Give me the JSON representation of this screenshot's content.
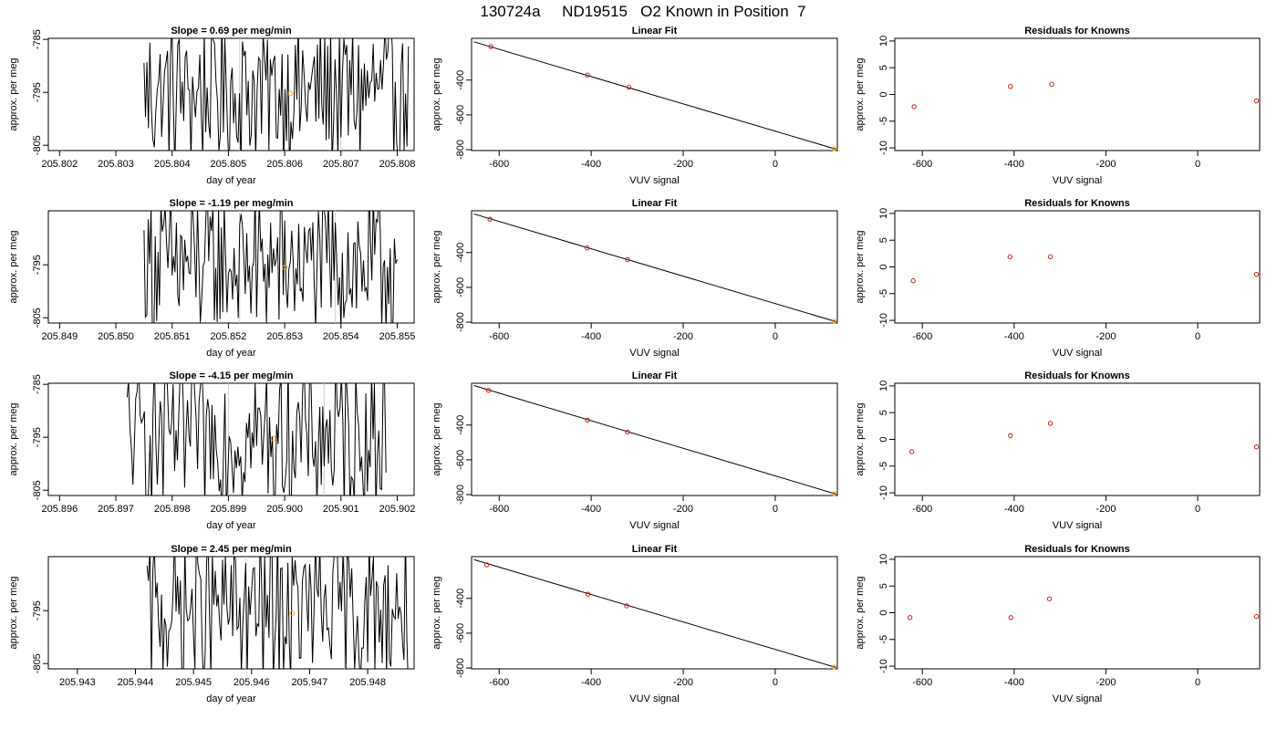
{
  "page": {
    "title": "130724a     ND19515   O2 Known in Position  7"
  },
  "rows": [
    {
      "time_plot": {
        "title": "Slope =  0.69  per meg/min",
        "xlabel": "day of year",
        "ylabel": "approx. per meg",
        "xlim": [
          205.8018,
          205.8083
        ],
        "ylim": [
          -806,
          -784.8
        ],
        "xticks": [
          205.802,
          205.803,
          205.804,
          205.805,
          205.806,
          205.807,
          205.808
        ],
        "xtick_labels": [
          "205.802",
          "205.803",
          "205.804",
          "205.805",
          "205.806",
          "205.807",
          "205.808"
        ],
        "yticks": [
          -785,
          -795,
          -805
        ],
        "ytick_labels": [
          "-785",
          "-795",
          "-805"
        ],
        "trace_start": 205.8035,
        "trace_end": 205.8082,
        "vlines": [
          205.8052,
          205.807
        ],
        "marker": {
          "x": 205.8061,
          "y": -795.2
        }
      },
      "fit_plot": {
        "title": "Linear Fit",
        "xlabel": "VUV signal",
        "ylabel": "approx. per meg",
        "xlim": [
          -660,
          135
        ],
        "ylim": [
          -805,
          -160
        ],
        "xticks": [
          -600,
          -400,
          -200,
          0
        ],
        "xtick_labels": [
          "-600",
          "-400",
          "-200",
          "0"
        ],
        "yticks": [
          -400,
          -600,
          -800
        ],
        "ytick_labels": [
          "-400",
          "-600",
          "-800"
        ],
        "line": {
          "x0": -655,
          "y0": -180,
          "x1": 132,
          "y1": -797
        },
        "points": [
          {
            "x": -618,
            "y": -208
          },
          {
            "x": -408,
            "y": -371
          },
          {
            "x": -318,
            "y": -441
          }
        ],
        "orange_point": {
          "x": 128,
          "y": -794
        }
      },
      "resid_plot": {
        "title": "Residuals for Knowns",
        "xlabel": "VUV signal",
        "ylabel": "approx. per meg",
        "xlim": [
          -660,
          135
        ],
        "ylim": [
          -10.5,
          10.5
        ],
        "xticks": [
          -600,
          -400,
          -200,
          0
        ],
        "xtick_labels": [
          "-600",
          "-400",
          "-200",
          "0"
        ],
        "yticks": [
          10,
          5,
          0,
          -5,
          -10
        ],
        "ytick_labels": [
          "10",
          "5",
          "0",
          "-5",
          "-10"
        ],
        "points": [
          {
            "x": -618,
            "y": -2.3
          },
          {
            "x": -408,
            "y": 1.5
          },
          {
            "x": -318,
            "y": 1.9
          },
          {
            "x": 128,
            "y": -1.2
          }
        ]
      }
    },
    {
      "time_plot": {
        "title": "Slope =  -1.19  per meg/min",
        "xlabel": "day of year",
        "ylabel": "approx. per meg",
        "xlim": [
          205.8488,
          205.8553
        ],
        "ylim": [
          -806,
          -784.8
        ],
        "xticks": [
          205.849,
          205.85,
          205.851,
          205.852,
          205.853,
          205.854,
          205.855
        ],
        "xtick_labels": [
          "205.849",
          "205.850",
          "205.851",
          "205.852",
          "205.853",
          "205.854",
          "205.855"
        ],
        "yticks": [
          -795,
          -805
        ],
        "ytick_labels": [
          "-795",
          "-805"
        ],
        "trace_start": 205.8505,
        "trace_end": 205.855,
        "vlines": [
          205.8522,
          205.8539
        ],
        "marker": {
          "x": 205.853,
          "y": -795.5
        }
      },
      "fit_plot": {
        "title": "Linear Fit",
        "xlabel": "VUV signal",
        "ylabel": "approx. per meg",
        "xlim": [
          -660,
          135
        ],
        "ylim": [
          -805,
          -160
        ],
        "xticks": [
          -600,
          -400,
          -200,
          0
        ],
        "xtick_labels": [
          "-600",
          "-400",
          "-200",
          "0"
        ],
        "yticks": [
          -400,
          -600,
          -800
        ],
        "ytick_labels": [
          "-400",
          "-600",
          "-800"
        ],
        "line": {
          "x0": -655,
          "y0": -178,
          "x1": 132,
          "y1": -797
        },
        "points": [
          {
            "x": -620,
            "y": -208
          },
          {
            "x": -409,
            "y": -373
          },
          {
            "x": -321,
            "y": -441
          }
        ],
        "orange_point": {
          "x": 128,
          "y": -794
        }
      },
      "resid_plot": {
        "title": "Residuals for Knowns",
        "xlabel": "VUV signal",
        "ylabel": "approx. per meg",
        "xlim": [
          -660,
          135
        ],
        "ylim": [
          -10.5,
          10.5
        ],
        "xticks": [
          -600,
          -400,
          -200,
          0
        ],
        "xtick_labels": [
          "-600",
          "-400",
          "-200",
          "0"
        ],
        "yticks": [
          10,
          5,
          0,
          -5,
          -10
        ],
        "ytick_labels": [
          "10",
          "5",
          "0",
          "-5",
          "-10"
        ],
        "points": [
          {
            "x": -620,
            "y": -2.6
          },
          {
            "x": -409,
            "y": 1.9
          },
          {
            "x": -321,
            "y": 1.9
          },
          {
            "x": 128,
            "y": -1.4
          }
        ]
      }
    },
    {
      "time_plot": {
        "title": "Slope =  -4.15  per meg/min",
        "xlabel": "day of year",
        "ylabel": "approx. per meg",
        "xlim": [
          205.8958,
          205.9023
        ],
        "ylim": [
          -806,
          -784.8
        ],
        "xticks": [
          205.896,
          205.897,
          205.898,
          205.899,
          205.9,
          205.901,
          205.902
        ],
        "xtick_labels": [
          "205.896",
          "205.897",
          "205.898",
          "205.899",
          "205.900",
          "205.901",
          "205.902"
        ],
        "yticks": [
          -785,
          -795,
          -805
        ],
        "ytick_labels": [
          "-785",
          "-795",
          "-805"
        ],
        "trace_start": 205.8972,
        "trace_end": 205.9018,
        "vlines": [
          205.899,
          205.9007
        ],
        "marker": {
          "x": 205.8998,
          "y": -795.2
        }
      },
      "fit_plot": {
        "title": "Linear Fit",
        "xlabel": "VUV signal",
        "ylabel": "approx. per meg",
        "xlim": [
          -660,
          135
        ],
        "ylim": [
          -805,
          -160
        ],
        "xticks": [
          -600,
          -400,
          -200,
          0
        ],
        "xtick_labels": [
          "-600",
          "-400",
          "-200",
          "0"
        ],
        "yticks": [
          -400,
          -600,
          -800
        ],
        "ytick_labels": [
          "-400",
          "-600",
          "-800"
        ],
        "line": {
          "x0": -655,
          "y0": -173,
          "x1": 132,
          "y1": -797
        },
        "points": [
          {
            "x": -623,
            "y": -201
          },
          {
            "x": -408,
            "y": -372
          },
          {
            "x": -321,
            "y": -440
          }
        ],
        "orange_point": {
          "x": 128,
          "y": -794
        }
      },
      "resid_plot": {
        "title": "Residuals for Knowns",
        "xlabel": "VUV signal",
        "ylabel": "approx. per meg",
        "xlim": [
          -660,
          135
        ],
        "ylim": [
          -10.5,
          10.5
        ],
        "xticks": [
          -600,
          -400,
          -200,
          0
        ],
        "xtick_labels": [
          "-600",
          "-400",
          "-200",
          "0"
        ],
        "yticks": [
          10,
          5,
          0,
          -5,
          -10
        ],
        "ytick_labels": [
          "10",
          "5",
          "0",
          "-5",
          "-10"
        ],
        "points": [
          {
            "x": -623,
            "y": -2.3
          },
          {
            "x": -408,
            "y": 0.7
          },
          {
            "x": -321,
            "y": 3.0
          },
          {
            "x": 128,
            "y": -1.4
          }
        ]
      }
    },
    {
      "time_plot": {
        "title": "Slope =  2.45  per meg/min",
        "xlabel": "day of year",
        "ylabel": "approx. per meg",
        "xlim": [
          205.9425,
          205.9488
        ],
        "ylim": [
          -806,
          -784.8
        ],
        "xticks": [
          205.943,
          205.944,
          205.945,
          205.946,
          205.947,
          205.948
        ],
        "xtick_labels": [
          "205.943",
          "205.944",
          "205.945",
          "205.946",
          "205.947",
          "205.948"
        ],
        "yticks": [
          -795,
          -805
        ],
        "ytick_labels": [
          "-795",
          "-805"
        ],
        "trace_start": 205.9442,
        "trace_end": 205.9487,
        "vlines": [
          205.9459,
          205.9476
        ],
        "marker": {
          "x": 205.9467,
          "y": -795.5
        }
      },
      "fit_plot": {
        "title": "Linear Fit",
        "xlabel": "VUV signal",
        "ylabel": "approx. per meg",
        "xlim": [
          -660,
          135
        ],
        "ylim": [
          -805,
          -160
        ],
        "xticks": [
          -600,
          -400,
          -200,
          0
        ],
        "xtick_labels": [
          "-600",
          "-400",
          "-200",
          "0"
        ],
        "yticks": [
          -400,
          -600,
          -800
        ],
        "ytick_labels": [
          "-400",
          "-600",
          "-800"
        ],
        "line": {
          "x0": -655,
          "y0": -177,
          "x1": 132,
          "y1": -797
        },
        "points": [
          {
            "x": -627,
            "y": -207
          },
          {
            "x": -407,
            "y": -376
          },
          {
            "x": -323,
            "y": -443
          }
        ],
        "orange_point": {
          "x": 128,
          "y": -794
        }
      },
      "resid_plot": {
        "title": "Residuals for Knowns",
        "xlabel": "VUV signal",
        "ylabel": "approx. per meg",
        "xlim": [
          -660,
          135
        ],
        "ylim": [
          -10.5,
          10.5
        ],
        "xticks": [
          -600,
          -400,
          -200,
          0
        ],
        "xtick_labels": [
          "-600",
          "-400",
          "-200",
          "0"
        ],
        "yticks": [
          10,
          5,
          0,
          -5,
          -10
        ],
        "ytick_labels": [
          "10",
          "5",
          "0",
          "-5",
          "-10"
        ],
        "points": [
          {
            "x": -627,
            "y": -0.9
          },
          {
            "x": -407,
            "y": -0.9
          },
          {
            "x": -323,
            "y": 2.6
          },
          {
            "x": 128,
            "y": -0.7
          }
        ]
      }
    }
  ],
  "chart_data": [
    {
      "type": "line",
      "title": "Slope =  0.69  per meg/min",
      "xlabel": "day of year",
      "ylabel": "approx. per meg",
      "xlim": [
        205.8018,
        205.8083
      ],
      "ylim": [
        -806,
        -784.8
      ],
      "series": [
        {
          "values_note": "noisy trace between approx. -806 and -785"
        }
      ]
    },
    {
      "type": "scatter",
      "title": "Linear Fit",
      "xlabel": "VUV signal",
      "ylabel": "approx. per meg",
      "x": [
        -618,
        -408,
        -318,
        128
      ],
      "y": [
        -208,
        -371,
        -441,
        -794
      ]
    },
    {
      "type": "scatter",
      "title": "Residuals for Knowns",
      "xlabel": "VUV signal",
      "ylabel": "approx. per meg",
      "x": [
        -618,
        -408,
        -318,
        128
      ],
      "y": [
        -2.3,
        1.5,
        1.9,
        -1.2
      ]
    },
    {
      "type": "line",
      "title": "Slope =  -1.19  per meg/min",
      "xlabel": "day of year",
      "ylabel": "approx. per meg",
      "xlim": [
        205.8488,
        205.8553
      ],
      "ylim": [
        -806,
        -784.8
      ]
    },
    {
      "type": "scatter",
      "title": "Linear Fit",
      "xlabel": "VUV signal",
      "ylabel": "approx. per meg",
      "x": [
        -620,
        -409,
        -321,
        128
      ],
      "y": [
        -208,
        -373,
        -441,
        -794
      ]
    },
    {
      "type": "scatter",
      "title": "Residuals for Knowns",
      "xlabel": "VUV signal",
      "ylabel": "approx. per meg",
      "x": [
        -620,
        -409,
        -321,
        128
      ],
      "y": [
        -2.6,
        1.9,
        1.9,
        -1.4
      ]
    },
    {
      "type": "line",
      "title": "Slope =  -4.15  per meg/min",
      "xlabel": "day of year",
      "ylabel": "approx. per meg",
      "xlim": [
        205.8958,
        205.9023
      ],
      "ylim": [
        -806,
        -784.8
      ]
    },
    {
      "type": "scatter",
      "title": "Linear Fit",
      "xlabel": "VUV signal",
      "ylabel": "approx. per meg",
      "x": [
        -623,
        -408,
        -321,
        128
      ],
      "y": [
        -201,
        -372,
        -440,
        -794
      ]
    },
    {
      "type": "scatter",
      "title": "Residuals for Knowns",
      "xlabel": "VUV signal",
      "ylabel": "approx. per meg",
      "x": [
        -623,
        -408,
        -321,
        128
      ],
      "y": [
        -2.3,
        0.7,
        3.0,
        -1.4
      ]
    },
    {
      "type": "line",
      "title": "Slope =  2.45  per meg/min",
      "xlabel": "day of year",
      "ylabel": "approx. per meg",
      "xlim": [
        205.9425,
        205.9488
      ],
      "ylim": [
        -806,
        -784.8
      ]
    },
    {
      "type": "scatter",
      "title": "Linear Fit",
      "xlabel": "VUV signal",
      "ylabel": "approx. per meg",
      "x": [
        -627,
        -407,
        -323,
        128
      ],
      "y": [
        -207,
        -376,
        -443,
        -794
      ]
    },
    {
      "type": "scatter",
      "title": "Residuals for Knowns",
      "xlabel": "VUV signal",
      "ylabel": "approx. per meg",
      "x": [
        -627,
        -407,
        -323,
        128
      ],
      "y": [
        -0.9,
        -0.9,
        2.6,
        -0.7
      ]
    }
  ],
  "colors": {
    "trace": "#000000",
    "point": "#cc2222",
    "marker": "#f0a020",
    "vline": "#cccccc"
  }
}
